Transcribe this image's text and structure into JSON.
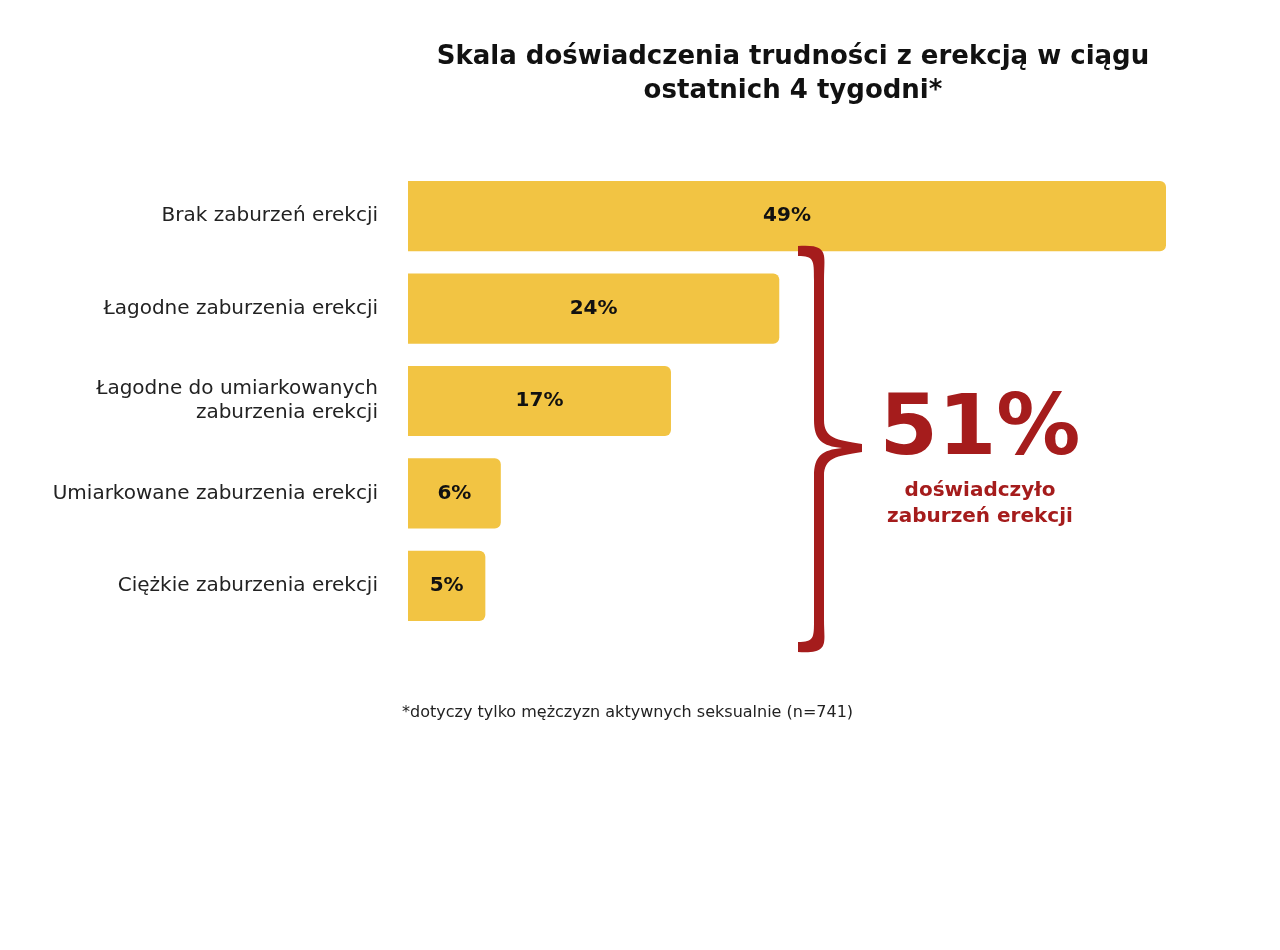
{
  "chart_data": {
    "type": "bar",
    "orientation": "horizontal",
    "title": "Skala doświadczenia trudności z erekcją w ciągu ostatnich 4 tygodni*",
    "categories": [
      "Brak zaburzeń erekcji",
      "Łagodne zaburzenia erekcji",
      "Łagodne do umiarkowanych zaburzenia erekcji",
      "Umiarkowane zaburzenia erekcji",
      "Ciężkie zaburzenia erekcji"
    ],
    "values": [
      49,
      24,
      17,
      6,
      5
    ],
    "value_labels": [
      "49%",
      "24%",
      "17%",
      "6%",
      "5%"
    ],
    "color": "#f2c443",
    "annotations": [
      "51%",
      "doświadczyło zaburzeń erekcji",
      "*dotyczy tylko mężczyzn aktywnych seksualnie (n=741)"
    ]
  }
}
